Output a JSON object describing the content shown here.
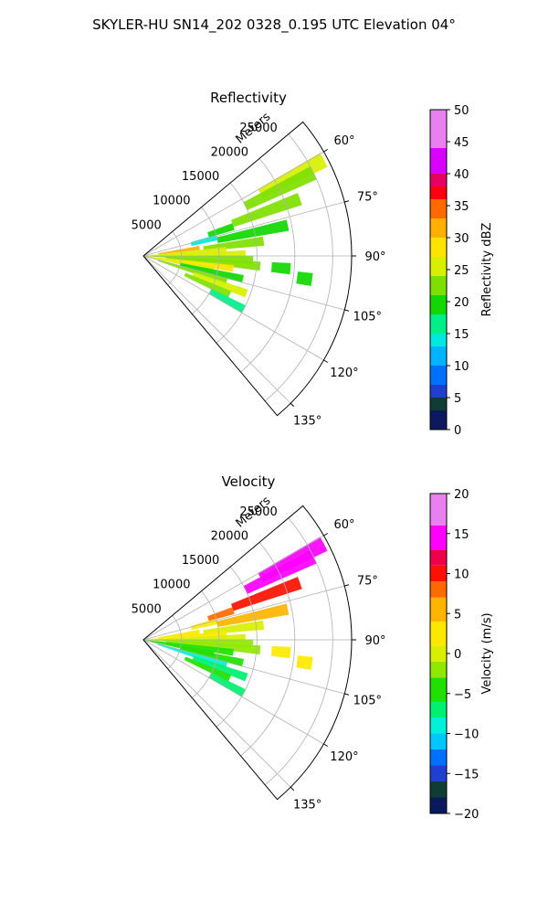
{
  "figure": {
    "suptitle": "SKYLER-HU  SN14_202  0328_0.195 UTC Elevation 04°"
  },
  "chart_data": [
    {
      "type": "heatmap",
      "projection": "polar-sector",
      "title": "Reflectivity",
      "radial_axis_label": "Meters",
      "radial_ticks": [
        5000,
        10000,
        15000,
        20000,
        25000
      ],
      "radial_tick_labels": [
        "5000",
        "10000",
        "15000",
        "20000",
        "25000"
      ],
      "rlim": [
        0,
        27500
      ],
      "azimuth_range_deg": [
        50,
        140
      ],
      "azimuth_tick_labels": [
        "60°",
        "75°",
        "90°",
        "105°",
        "120°",
        "135°"
      ],
      "azimuth_ticks_deg": [
        60,
        75,
        90,
        105,
        120,
        135
      ],
      "grid": true,
      "colorbar": {
        "label": "Reflectivity dBZ",
        "min": 0,
        "max": 50,
        "ticks": [
          0,
          5,
          10,
          15,
          20,
          25,
          30,
          35,
          40,
          45,
          50
        ],
        "tick_labels": [
          "0",
          "5",
          "10",
          "15",
          "20",
          "25",
          "30",
          "35",
          "40",
          "45",
          "50"
        ],
        "stops": [
          {
            "v": 0,
            "c": "#0a1a5c"
          },
          {
            "v": 3,
            "c": "#0f3d33"
          },
          {
            "v": 5,
            "c": "#1f3fd0"
          },
          {
            "v": 7,
            "c": "#0070ff"
          },
          {
            "v": 10,
            "c": "#00b4ff"
          },
          {
            "v": 13,
            "c": "#00e8e0"
          },
          {
            "v": 15,
            "c": "#00f088"
          },
          {
            "v": 18,
            "c": "#10d800"
          },
          {
            "v": 21,
            "c": "#7ee000"
          },
          {
            "v": 24,
            "c": "#d8f000"
          },
          {
            "v": 27,
            "c": "#ffe400"
          },
          {
            "v": 30,
            "c": "#ffb000"
          },
          {
            "v": 33,
            "c": "#ff6a00"
          },
          {
            "v": 36,
            "c": "#ff0010"
          },
          {
            "v": 38,
            "c": "#e80060"
          },
          {
            "v": 40,
            "c": "#d800ff"
          },
          {
            "v": 44,
            "c": "#e880f0"
          },
          {
            "v": 50,
            "c": "#fbe8fb"
          }
        ]
      },
      "cells": [
        {
          "az": 62,
          "r0": 17500,
          "r1": 27000,
          "v": 25
        },
        {
          "az": 64,
          "r0": 15000,
          "r1": 25000,
          "v": 22
        },
        {
          "az": 70,
          "r0": 12500,
          "r1": 22000,
          "v": 21
        },
        {
          "az": 72,
          "r0": 9000,
          "r1": 12500,
          "v": 20
        },
        {
          "az": 76,
          "r0": 6500,
          "r1": 10000,
          "v": 14
        },
        {
          "az": 78,
          "r0": 10000,
          "r1": 19500,
          "v": 19
        },
        {
          "az": 82,
          "r0": 2000,
          "r1": 7500,
          "v": 30
        },
        {
          "az": 83,
          "r0": 8000,
          "r1": 16000,
          "v": 22
        },
        {
          "az": 86,
          "r0": 0,
          "r1": 11000,
          "v": 24
        },
        {
          "az": 89,
          "r0": 2000,
          "r1": 13500,
          "v": 26
        },
        {
          "az": 92,
          "r0": 0,
          "r1": 14500,
          "v": 23
        },
        {
          "az": 95,
          "r0": 3000,
          "r1": 15500,
          "v": 22
        },
        {
          "az": 98,
          "r0": 0,
          "r1": 12000,
          "v": 27
        },
        {
          "az": 101,
          "r0": 0,
          "r1": 9500,
          "v": 24
        },
        {
          "az": 103,
          "r0": 5000,
          "r1": 13500,
          "v": 20
        },
        {
          "az": 107,
          "r0": 2000,
          "r1": 11500,
          "v": 23
        },
        {
          "az": 110,
          "r0": 7000,
          "r1": 14500,
          "v": 24
        },
        {
          "az": 114,
          "r0": 6000,
          "r1": 12500,
          "v": 21
        },
        {
          "az": 118,
          "r0": 10000,
          "r1": 15000,
          "v": 17
        },
        {
          "az": 95,
          "r0": 17000,
          "r1": 19500,
          "v": 19
        },
        {
          "az": 98,
          "r0": 20500,
          "r1": 22500,
          "v": 20
        }
      ]
    },
    {
      "type": "heatmap",
      "projection": "polar-sector",
      "title": "Velocity",
      "radial_axis_label": "Meters",
      "radial_ticks": [
        5000,
        10000,
        15000,
        20000,
        25000
      ],
      "radial_tick_labels": [
        "5000",
        "10000",
        "15000",
        "20000",
        "25000"
      ],
      "rlim": [
        0,
        27500
      ],
      "azimuth_range_deg": [
        50,
        140
      ],
      "azimuth_tick_labels": [
        "60°",
        "75°",
        "90°",
        "105°",
        "120°",
        "135°"
      ],
      "azimuth_ticks_deg": [
        60,
        75,
        90,
        105,
        120,
        135
      ],
      "grid": true,
      "colorbar": {
        "label": "Velocity (m/s)",
        "min": -20,
        "max": 20,
        "ticks": [
          -20,
          -15,
          -10,
          -5,
          0,
          5,
          10,
          15,
          20
        ],
        "tick_labels": [
          "−20",
          "−15",
          "−10",
          "−5",
          "0",
          "5",
          "10",
          "15",
          "20"
        ],
        "stops": [
          {
            "v": -20,
            "c": "#081a5c"
          },
          {
            "v": -18,
            "c": "#0f3d33"
          },
          {
            "v": -16,
            "c": "#1f3fd0"
          },
          {
            "v": -14,
            "c": "#0070ff"
          },
          {
            "v": -12,
            "c": "#00c8ff"
          },
          {
            "v": -10,
            "c": "#00f0d8"
          },
          {
            "v": -8,
            "c": "#00f070"
          },
          {
            "v": -6,
            "c": "#20e000"
          },
          {
            "v": -3,
            "c": "#90e800"
          },
          {
            "v": -1,
            "c": "#d8f000"
          },
          {
            "v": 1,
            "c": "#ffe800"
          },
          {
            "v": 4,
            "c": "#ffb400"
          },
          {
            "v": 7,
            "c": "#ff6a00"
          },
          {
            "v": 9,
            "c": "#ff1000"
          },
          {
            "v": 11,
            "c": "#f0004a"
          },
          {
            "v": 13,
            "c": "#ff00ff"
          },
          {
            "v": 16,
            "c": "#e880f0"
          },
          {
            "v": 20,
            "c": "#fbe8fb"
          }
        ]
      },
      "cells": [
        {
          "az": 62,
          "r0": 17500,
          "r1": 27000,
          "v": 14
        },
        {
          "az": 64,
          "r0": 15000,
          "r1": 25000,
          "v": 13
        },
        {
          "az": 70,
          "r0": 12500,
          "r1": 22000,
          "v": 9
        },
        {
          "az": 72,
          "r0": 9000,
          "r1": 12500,
          "v": 7
        },
        {
          "az": 76,
          "r0": 6500,
          "r1": 10000,
          "v": 2
        },
        {
          "az": 78,
          "r0": 10000,
          "r1": 19500,
          "v": 5
        },
        {
          "az": 82,
          "r0": 2000,
          "r1": 7500,
          "v": 1
        },
        {
          "az": 83,
          "r0": 8000,
          "r1": 16000,
          "v": 0
        },
        {
          "az": 86,
          "r0": 0,
          "r1": 11000,
          "v": 1
        },
        {
          "az": 89,
          "r0": 2000,
          "r1": 13500,
          "v": -1
        },
        {
          "az": 92,
          "r0": 0,
          "r1": 14500,
          "v": -2
        },
        {
          "az": 95,
          "r0": 3000,
          "r1": 15500,
          "v": -3
        },
        {
          "az": 98,
          "r0": 0,
          "r1": 12000,
          "v": -4
        },
        {
          "az": 101,
          "r0": 0,
          "r1": 9500,
          "v": -5
        },
        {
          "az": 103,
          "r0": 5000,
          "r1": 13500,
          "v": -6
        },
        {
          "az": 107,
          "r0": 2000,
          "r1": 11500,
          "v": -9
        },
        {
          "az": 110,
          "r0": 7000,
          "r1": 14500,
          "v": -7
        },
        {
          "az": 114,
          "r0": 6000,
          "r1": 12500,
          "v": -6
        },
        {
          "az": 118,
          "r0": 10000,
          "r1": 15000,
          "v": -7
        },
        {
          "az": 95,
          "r0": 17000,
          "r1": 19500,
          "v": 2
        },
        {
          "az": 98,
          "r0": 20500,
          "r1": 22500,
          "v": 3
        }
      ]
    }
  ]
}
